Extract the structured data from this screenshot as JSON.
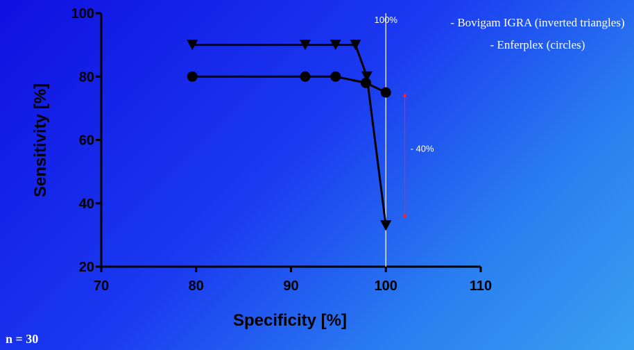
{
  "chart_data": {
    "type": "line",
    "xlabel": "Specificity [%]",
    "ylabel": "Sensitivity [%]",
    "xlim": [
      70,
      110
    ],
    "ylim": [
      20,
      100
    ],
    "xticks": [
      "70",
      "80",
      "90",
      "100",
      "110"
    ],
    "yticks": [
      "20",
      "40",
      "60",
      "80",
      "100"
    ],
    "series": [
      {
        "marker": "inverted-triangle",
        "color": "#000000",
        "x": [
          79.6,
          91.5,
          94.7,
          96.8,
          98.0,
          100.0
        ],
        "y": [
          90,
          90,
          90,
          90,
          80,
          33
        ]
      },
      {
        "marker": "circle",
        "color": "#000000",
        "x": [
          79.6,
          91.5,
          94.7,
          97.9,
          100.0
        ],
        "y": [
          80,
          80,
          80,
          78,
          75
        ]
      }
    ],
    "reference_line": {
      "x": 100,
      "label": "100%",
      "color": "#ffffff"
    },
    "drop_arrow": {
      "x": 102,
      "y_from": 75,
      "y_to": 35,
      "label": "- 40%",
      "color": "#ff2020"
    },
    "grid": false
  },
  "legend": [
    "- Bovigam IGRA (inverted triangles)",
    "- Enferplex (circles)"
  ],
  "note": "n = 30"
}
